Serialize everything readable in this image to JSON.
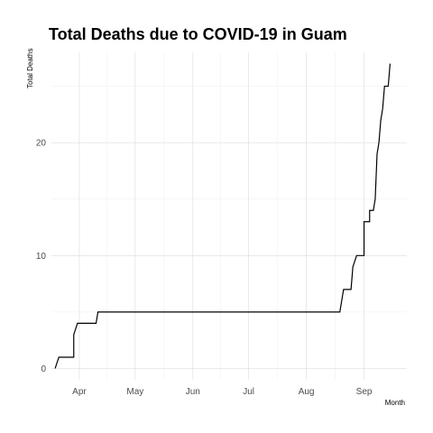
{
  "chart_data": {
    "type": "line",
    "title": "Total Deaths due to COVID-19 in Guam",
    "xlabel": "Month",
    "ylabel": "Total Deaths",
    "x_ticks": [
      {
        "label": "Apr",
        "date": "2020-04-01"
      },
      {
        "label": "May",
        "date": "2020-05-01"
      },
      {
        "label": "Jun",
        "date": "2020-06-01"
      },
      {
        "label": "Jul",
        "date": "2020-07-01"
      },
      {
        "label": "Aug",
        "date": "2020-08-01"
      },
      {
        "label": "Sep",
        "date": "2020-09-01"
      }
    ],
    "y_ticks": [
      0,
      10,
      20
    ],
    "xlim": [
      "2020-03-17",
      "2020-09-24"
    ],
    "ylim": [
      -1,
      28
    ],
    "grid": true,
    "series": [
      {
        "color": "#000000",
        "points": [
          {
            "x": "2020-03-19",
            "y": 0
          },
          {
            "x": "2020-03-21",
            "y": 1
          },
          {
            "x": "2020-03-29",
            "y": 1
          },
          {
            "x": "2020-03-29",
            "y": 3
          },
          {
            "x": "2020-03-31",
            "y": 4
          },
          {
            "x": "2020-04-10",
            "y": 4
          },
          {
            "x": "2020-04-11",
            "y": 5
          },
          {
            "x": "2020-08-19",
            "y": 5
          },
          {
            "x": "2020-08-21",
            "y": 7
          },
          {
            "x": "2020-08-25",
            "y": 7
          },
          {
            "x": "2020-08-26",
            "y": 9
          },
          {
            "x": "2020-08-28",
            "y": 10
          },
          {
            "x": "2020-09-01",
            "y": 10
          },
          {
            "x": "2020-09-01",
            "y": 13
          },
          {
            "x": "2020-09-04",
            "y": 13
          },
          {
            "x": "2020-09-04",
            "y": 14
          },
          {
            "x": "2020-09-06",
            "y": 14
          },
          {
            "x": "2020-09-07",
            "y": 15
          },
          {
            "x": "2020-09-08",
            "y": 19
          },
          {
            "x": "2020-09-09",
            "y": 20
          },
          {
            "x": "2020-09-10",
            "y": 22
          },
          {
            "x": "2020-09-11",
            "y": 23
          },
          {
            "x": "2020-09-12",
            "y": 25
          },
          {
            "x": "2020-09-14",
            "y": 25
          },
          {
            "x": "2020-09-15",
            "y": 27
          }
        ]
      }
    ]
  }
}
